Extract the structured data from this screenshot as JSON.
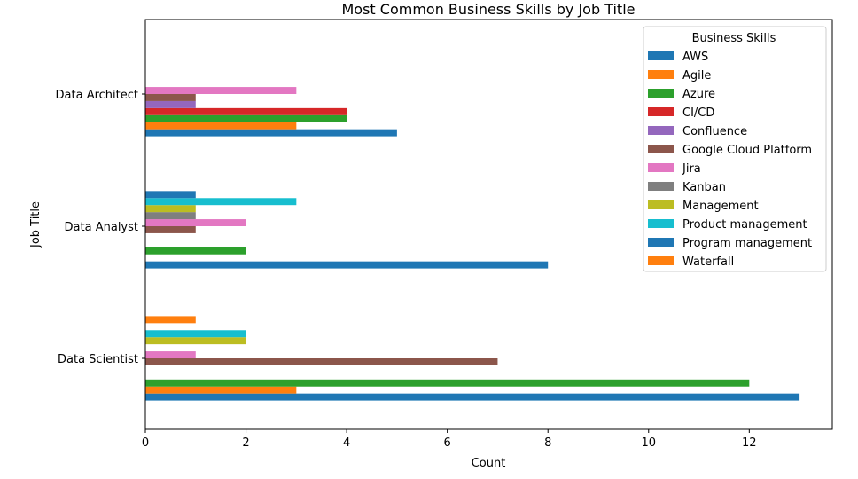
{
  "chart_data": {
    "type": "bar",
    "orientation": "horizontal",
    "title": "Most Common Business Skills by Job Title",
    "xlabel": "Count",
    "ylabel": "Job Title",
    "xlim": [
      0,
      13.65
    ],
    "xticks": [
      0,
      2,
      4,
      6,
      8,
      10,
      12
    ],
    "grid": false,
    "legend_title": "Business Skills",
    "legend_position": "top-right",
    "categories": [
      "Data Architect",
      "Data Analyst",
      "Data Scientist"
    ],
    "series": [
      {
        "name": "AWS",
        "color": "#1f77b4",
        "values": [
          5,
          8,
          13
        ]
      },
      {
        "name": "Agile",
        "color": "#ff7f0e",
        "values": [
          3,
          null,
          3
        ]
      },
      {
        "name": "Azure",
        "color": "#2ca02c",
        "values": [
          4,
          2,
          12
        ]
      },
      {
        "name": "CI/CD",
        "color": "#d62728",
        "values": [
          4,
          null,
          null
        ]
      },
      {
        "name": "Confluence",
        "color": "#9467bd",
        "values": [
          1,
          null,
          null
        ]
      },
      {
        "name": "Google Cloud Platform",
        "color": "#8c564b",
        "values": [
          1,
          1,
          7
        ]
      },
      {
        "name": "Jira",
        "color": "#e377c2",
        "values": [
          3,
          2,
          1
        ]
      },
      {
        "name": "Kanban",
        "color": "#7f7f7f",
        "values": [
          null,
          1,
          null
        ]
      },
      {
        "name": "Management",
        "color": "#bcbd22",
        "values": [
          null,
          1,
          2
        ]
      },
      {
        "name": "Product management",
        "color": "#17becf",
        "values": [
          null,
          3,
          2
        ]
      },
      {
        "name": "Program management",
        "color": "#1f77b4",
        "values": [
          null,
          1,
          null
        ]
      },
      {
        "name": "Waterfall",
        "color": "#ff7f0e",
        "values": [
          null,
          null,
          1
        ]
      }
    ]
  }
}
